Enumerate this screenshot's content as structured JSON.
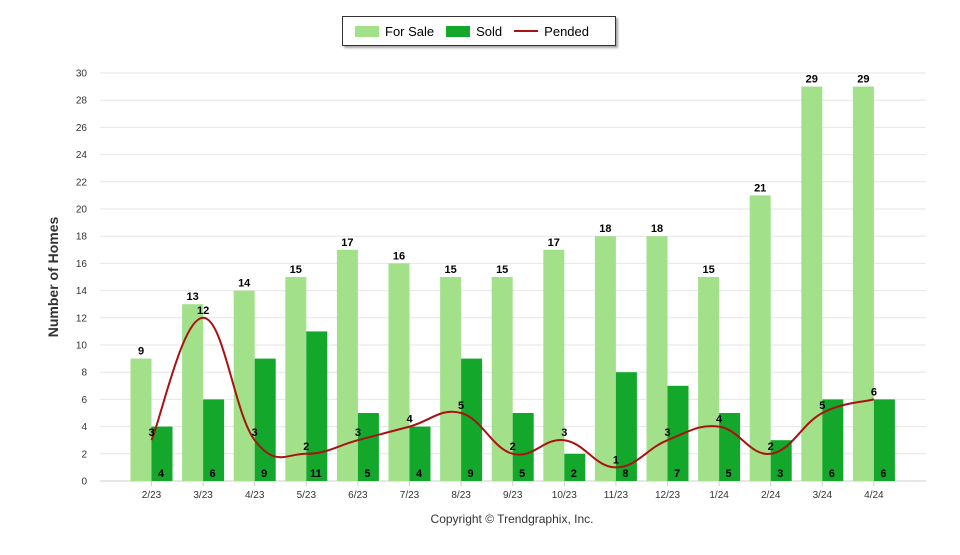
{
  "chart_data": {
    "type": "bar",
    "title": "",
    "xlabel": "",
    "ylabel": "Number of Homes",
    "ylim": [
      0,
      30
    ],
    "yticks": [
      0,
      2,
      4,
      6,
      8,
      10,
      12,
      14,
      16,
      18,
      20,
      22,
      24,
      26,
      28,
      30
    ],
    "grid": true,
    "legend_position": "top-center",
    "categories": [
      "2/23",
      "3/23",
      "4/23",
      "5/23",
      "6/23",
      "7/23",
      "8/23",
      "9/23",
      "10/23",
      "11/23",
      "12/23",
      "1/24",
      "2/24",
      "3/24",
      "4/24"
    ],
    "series": [
      {
        "name": "For Sale",
        "type": "bar",
        "color": "#a2e08a",
        "values": [
          9,
          13,
          14,
          15,
          17,
          16,
          15,
          15,
          17,
          18,
          18,
          15,
          21,
          29,
          29
        ]
      },
      {
        "name": "Sold",
        "type": "bar",
        "color": "#13a82c",
        "values": [
          4,
          6,
          9,
          11,
          5,
          4,
          9,
          5,
          2,
          8,
          7,
          5,
          3,
          6,
          6
        ]
      },
      {
        "name": "Pended",
        "type": "line",
        "color": "#aa1111",
        "values": [
          3,
          12,
          3,
          2,
          3,
          4,
          5,
          2,
          3,
          1,
          3,
          4,
          2,
          5,
          6
        ]
      }
    ]
  },
  "footer": {
    "copyright": "Copyright © Trendgraphix, Inc."
  }
}
